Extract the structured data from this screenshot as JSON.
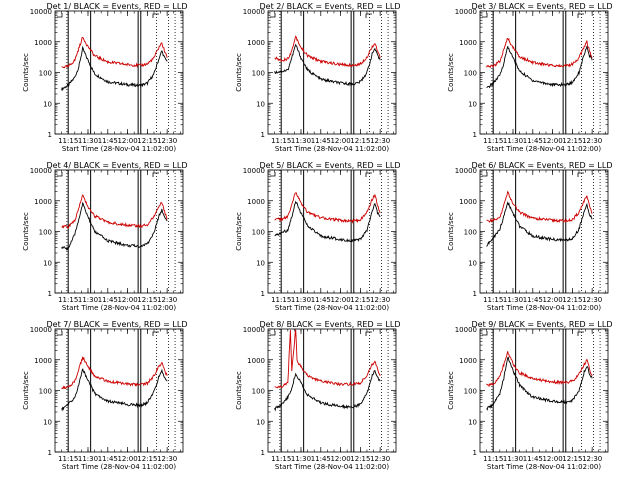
{
  "chart_data": [
    {
      "type": "line",
      "title": "Det 1/ BLACK = Events, RED = LLD",
      "xlabel": "Start Time (28-Nov-04 11:02:00)",
      "ylabel": "Counts/sec",
      "yscale": "log",
      "ylim": [
        1,
        10000
      ],
      "x_ticks": [
        "11:15",
        "11:30",
        "11:45",
        "12:00",
        "12:15",
        "12:30"
      ],
      "y_ticks": [
        "1",
        "10",
        "100",
        "1000",
        "10000"
      ],
      "vlines_solid": [
        "11:15",
        "11:32",
        "12:08",
        "12:10"
      ],
      "vlines_dotted": [
        "11:14",
        "12:22",
        "12:31",
        "12:36"
      ],
      "series": [
        {
          "name": "Events",
          "color": "#000000",
          "x": [
            "11:10",
            "11:15",
            "11:20",
            "11:23",
            "11:26",
            "11:30",
            "11:35",
            "11:45",
            "12:00",
            "12:10",
            "12:15",
            "12:20",
            "12:24",
            "12:26",
            "12:28",
            "12:30"
          ],
          "y": [
            29,
            38,
            70,
            150,
            600,
            250,
            90,
            50,
            40,
            38,
            45,
            90,
            300,
            500,
            300,
            230
          ]
        },
        {
          "name": "LLD",
          "color": "#cc0000",
          "x": [
            "11:10",
            "11:15",
            "11:20",
            "11:23",
            "11:26",
            "11:30",
            "11:35",
            "11:45",
            "12:00",
            "12:10",
            "12:15",
            "12:20",
            "12:24",
            "12:26",
            "12:28",
            "12:30"
          ],
          "y": [
            150,
            155,
            250,
            600,
            1400,
            700,
            350,
            220,
            180,
            170,
            190,
            300,
            700,
            900,
            500,
            300
          ]
        }
      ]
    },
    {
      "type": "line",
      "title": "Det 2/ BLACK = Events, RED = LLD",
      "xlabel": "Start Time (28-Nov-04 11:02:00)",
      "ylabel": "Counts/sec",
      "yscale": "log",
      "ylim": [
        1,
        10000
      ],
      "x_ticks": [
        "11:15",
        "11:30",
        "11:45",
        "12:00",
        "12:15",
        "12:30"
      ],
      "y_ticks": [
        "1",
        "10",
        "100",
        "1000",
        "10000"
      ],
      "vlines_solid": [
        "11:15",
        "11:32",
        "12:08",
        "12:10"
      ],
      "vlines_dotted": [
        "11:14",
        "12:22",
        "12:31",
        "12:36"
      ],
      "series": [
        {
          "name": "Events",
          "color": "#000000",
          "x": [
            "11:10",
            "11:15",
            "11:20",
            "11:23",
            "11:26",
            "11:30",
            "11:35",
            "11:45",
            "12:00",
            "12:10",
            "12:15",
            "12:20",
            "12:24",
            "12:26",
            "12:28",
            "12:30"
          ],
          "y": [
            100,
            110,
            120,
            300,
            800,
            300,
            120,
            60,
            45,
            42,
            50,
            100,
            400,
            600,
            350,
            250
          ]
        },
        {
          "name": "LLD",
          "color": "#cc0000",
          "x": [
            "11:10",
            "11:15",
            "11:20",
            "11:23",
            "11:26",
            "11:30",
            "11:35",
            "11:45",
            "12:00",
            "12:10",
            "12:15",
            "12:20",
            "12:24",
            "12:26",
            "12:28",
            "12:30"
          ],
          "y": [
            300,
            250,
            280,
            500,
            1500,
            650,
            350,
            230,
            180,
            170,
            190,
            320,
            700,
            900,
            500,
            300
          ]
        }
      ]
    },
    {
      "type": "line",
      "title": "Det 3/ BLACK = Events, RED = LLD",
      "xlabel": "Start Time (28-Nov-04 11:02:00)",
      "ylabel": "Counts/sec",
      "yscale": "log",
      "ylim": [
        1,
        10000
      ],
      "x_ticks": [
        "11:15",
        "11:30",
        "11:45",
        "12:00",
        "12:15",
        "12:30"
      ],
      "y_ticks": [
        "1",
        "10",
        "100",
        "1000",
        "10000"
      ],
      "vlines_solid": [
        "11:15",
        "11:32",
        "12:08",
        "12:10"
      ],
      "vlines_dotted": [
        "11:14",
        "12:22",
        "12:31",
        "12:36"
      ],
      "series": [
        {
          "name": "Events",
          "color": "#000000",
          "x": [
            "11:10",
            "11:15",
            "11:20",
            "11:23",
            "11:26",
            "11:30",
            "11:35",
            "11:45",
            "12:00",
            "12:10",
            "12:15",
            "12:20",
            "12:24",
            "12:26",
            "12:28",
            "12:30"
          ],
          "y": [
            30,
            45,
            80,
            200,
            700,
            300,
            110,
            55,
            40,
            40,
            48,
            100,
            400,
            650,
            350,
            250
          ]
        },
        {
          "name": "LLD",
          "color": "#cc0000",
          "x": [
            "11:10",
            "11:15",
            "11:20",
            "11:23",
            "11:26",
            "11:30",
            "11:35",
            "11:45",
            "12:00",
            "12:10",
            "12:15",
            "12:20",
            "12:24",
            "12:26",
            "12:28",
            "12:30"
          ],
          "y": [
            150,
            160,
            230,
            550,
            1300,
            650,
            330,
            210,
            170,
            165,
            185,
            300,
            700,
            1000,
            500,
            300
          ]
        }
      ]
    },
    {
      "type": "line",
      "title": "Det 4/ BLACK = Events, RED = LLD",
      "xlabel": "Start Time (28-Nov-04 11:02:00)",
      "ylabel": "Counts/sec",
      "yscale": "log",
      "ylim": [
        1,
        10000
      ],
      "x_ticks": [
        "11:15",
        "11:30",
        "11:45",
        "12:00",
        "12:15",
        "12:30"
      ],
      "y_ticks": [
        "1",
        "10",
        "100",
        "1000",
        "10000"
      ],
      "vlines_solid": [
        "11:15",
        "11:32",
        "12:08",
        "12:10"
      ],
      "vlines_dotted": [
        "11:14",
        "12:22",
        "12:31",
        "12:36"
      ],
      "series": [
        {
          "name": "Events",
          "color": "#000000",
          "x": [
            "11:10",
            "11:15",
            "11:20",
            "11:23",
            "11:26",
            "11:30",
            "11:35",
            "11:45",
            "12:00",
            "12:10",
            "12:15",
            "12:20",
            "12:24",
            "12:26",
            "12:28",
            "12:30"
          ],
          "y": [
            30,
            28,
            80,
            250,
            800,
            300,
            100,
            50,
            35,
            33,
            40,
            90,
            350,
            500,
            300,
            220
          ]
        },
        {
          "name": "LLD",
          "color": "#cc0000",
          "x": [
            "11:10",
            "11:15",
            "11:20",
            "11:23",
            "11:26",
            "11:30",
            "11:35",
            "11:45",
            "12:00",
            "12:10",
            "12:15",
            "12:20",
            "12:24",
            "12:26",
            "12:28",
            "12:30"
          ],
          "y": [
            150,
            140,
            220,
            600,
            1500,
            650,
            320,
            200,
            160,
            150,
            170,
            300,
            700,
            900,
            450,
            250
          ]
        }
      ]
    },
    {
      "type": "line",
      "title": "Det 5/ BLACK = Events, RED = LLD",
      "xlabel": "Start Time (28-Nov-04 11:02:00)",
      "ylabel": "Counts/sec",
      "yscale": "log",
      "ylim": [
        1,
        10000
      ],
      "x_ticks": [
        "11:15",
        "11:30",
        "11:45",
        "12:00",
        "12:15",
        "12:30"
      ],
      "y_ticks": [
        "1",
        "10",
        "100",
        "1000",
        "10000"
      ],
      "vlines_solid": [
        "11:15",
        "11:32",
        "12:08",
        "12:10"
      ],
      "vlines_dotted": [
        "11:14",
        "12:22",
        "12:31",
        "12:36"
      ],
      "series": [
        {
          "name": "Events",
          "color": "#000000",
          "x": [
            "11:10",
            "11:15",
            "11:20",
            "11:23",
            "11:26",
            "11:30",
            "11:35",
            "11:45",
            "12:00",
            "12:10",
            "12:15",
            "12:20",
            "12:24",
            "12:26",
            "12:28",
            "12:30"
          ],
          "y": [
            70,
            90,
            110,
            300,
            1000,
            400,
            150,
            70,
            55,
            50,
            55,
            110,
            450,
            800,
            400,
            300
          ]
        },
        {
          "name": "LLD",
          "color": "#cc0000",
          "x": [
            "11:10",
            "11:15",
            "11:20",
            "11:23",
            "11:26",
            "11:30",
            "11:35",
            "11:45",
            "12:00",
            "12:10",
            "12:15",
            "12:20",
            "12:24",
            "12:26",
            "12:28",
            "12:30"
          ],
          "y": [
            250,
            250,
            300,
            700,
            2000,
            800,
            420,
            280,
            230,
            220,
            240,
            420,
            1100,
            1600,
            700,
            400
          ]
        }
      ]
    },
    {
      "type": "line",
      "title": "Det 6/ BLACK = Events, RED = LLD",
      "xlabel": "Start Time (28-Nov-04 11:02:00)",
      "ylabel": "Counts/sec",
      "yscale": "log",
      "ylim": [
        1,
        10000
      ],
      "x_ticks": [
        "11:15",
        "11:30",
        "11:45",
        "12:00",
        "12:15",
        "12:30"
      ],
      "y_ticks": [
        "1",
        "10",
        "100",
        "1000",
        "10000"
      ],
      "vlines_solid": [
        "11:15",
        "11:32",
        "12:08",
        "12:10"
      ],
      "vlines_dotted": [
        "11:14",
        "12:22",
        "12:31",
        "12:36"
      ],
      "series": [
        {
          "name": "Events",
          "color": "#000000",
          "x": [
            "11:10",
            "11:15",
            "11:20",
            "11:23",
            "11:26",
            "11:30",
            "11:35",
            "11:45",
            "12:00",
            "12:10",
            "12:15",
            "12:20",
            "12:24",
            "12:26",
            "12:28",
            "12:30"
          ],
          "y": [
            35,
            60,
            120,
            300,
            900,
            400,
            150,
            70,
            55,
            52,
            58,
            120,
            450,
            700,
            350,
            250
          ]
        },
        {
          "name": "LLD",
          "color": "#cc0000",
          "x": [
            "11:10",
            "11:15",
            "11:20",
            "11:23",
            "11:26",
            "11:30",
            "11:35",
            "11:45",
            "12:00",
            "12:10",
            "12:15",
            "12:20",
            "12:24",
            "12:26",
            "12:28",
            "12:30"
          ],
          "y": [
            220,
            230,
            280,
            700,
            1900,
            800,
            420,
            270,
            230,
            220,
            240,
            420,
            1000,
            1400,
            650,
            380
          ]
        }
      ]
    },
    {
      "type": "line",
      "title": "Det 7/ BLACK = Events, RED = LLD",
      "xlabel": "Start Time (28-Nov-04 11:02:00)",
      "ylabel": "Counts/sec",
      "yscale": "log",
      "ylim": [
        1,
        10000
      ],
      "x_ticks": [
        "11:15",
        "11:30",
        "11:45",
        "12:00",
        "12:15",
        "12:30"
      ],
      "y_ticks": [
        "1",
        "10",
        "100",
        "1000",
        "10000"
      ],
      "vlines_solid": [
        "11:15",
        "11:32",
        "12:08",
        "12:10"
      ],
      "vlines_dotted": [
        "11:14",
        "12:22",
        "12:31",
        "12:36"
      ],
      "series": [
        {
          "name": "Events",
          "color": "#000000",
          "x": [
            "11:10",
            "11:15",
            "11:20",
            "11:23",
            "11:26",
            "11:30",
            "11:35",
            "11:45",
            "12:00",
            "12:10",
            "12:15",
            "12:20",
            "12:24",
            "12:26",
            "12:28",
            "12:30"
          ],
          "y": [
            25,
            35,
            60,
            150,
            500,
            220,
            80,
            45,
            35,
            33,
            40,
            90,
            300,
            450,
            280,
            200
          ]
        },
        {
          "name": "LLD",
          "color": "#cc0000",
          "x": [
            "11:10",
            "11:15",
            "11:20",
            "11:23",
            "11:26",
            "11:30",
            "11:35",
            "11:45",
            "12:00",
            "12:10",
            "12:15",
            "12:20",
            "12:24",
            "12:26",
            "12:28",
            "12:30"
          ],
          "y": [
            120,
            130,
            200,
            500,
            1200,
            600,
            300,
            200,
            160,
            155,
            175,
            300,
            650,
            800,
            450,
            300
          ]
        }
      ]
    },
    {
      "type": "line",
      "title": "Det 8/ BLACK = Events, RED = LLD",
      "xlabel": "Start Time (28-Nov-04 11:02:00)",
      "ylabel": "Counts/sec",
      "yscale": "log",
      "ylim": [
        1,
        10000
      ],
      "x_ticks": [
        "11:15",
        "11:30",
        "11:45",
        "12:00",
        "12:15",
        "12:30"
      ],
      "y_ticks": [
        "1",
        "10",
        "100",
        "1000",
        "10000"
      ],
      "vlines_solid": [
        "11:15",
        "11:32",
        "12:08",
        "12:10"
      ],
      "vlines_dotted": [
        "11:14",
        "12:22",
        "12:31",
        "12:36"
      ],
      "series": [
        {
          "name": "Events",
          "color": "#000000",
          "x": [
            "11:10",
            "11:15",
            "11:20",
            "11:23",
            "11:26",
            "11:30",
            "11:35",
            "11:45",
            "12:00",
            "12:10",
            "12:15",
            "12:20",
            "12:24",
            "12:26",
            "12:28",
            "12:30"
          ],
          "y": [
            25,
            35,
            60,
            120,
            350,
            180,
            70,
            40,
            30,
            30,
            35,
            80,
            300,
            450,
            280,
            200
          ]
        },
        {
          "name": "LLD",
          "color": "#cc0000",
          "x": [
            "11:10",
            "11:15",
            "11:20",
            "11:22",
            "11:23",
            "11:26",
            "11:27",
            "11:30",
            "11:35",
            "11:45",
            "12:00",
            "12:10",
            "12:15",
            "12:20",
            "12:24",
            "12:26",
            "12:28",
            "12:30"
          ],
          "y": [
            120,
            130,
            180,
            10000,
            400,
            10000,
            900,
            600,
            300,
            200,
            160,
            160,
            180,
            300,
            700,
            900,
            500,
            300
          ]
        }
      ]
    },
    {
      "type": "line",
      "title": "Det 9/ BLACK = Events, RED = LLD",
      "xlabel": "Start Time (28-Nov-04 11:02:00)",
      "ylabel": "Counts/sec",
      "yscale": "log",
      "ylim": [
        1,
        10000
      ],
      "x_ticks": [
        "11:15",
        "11:30",
        "11:45",
        "12:00",
        "12:15",
        "12:30"
      ],
      "y_ticks": [
        "1",
        "10",
        "100",
        "1000",
        "10000"
      ],
      "vlines_solid": [
        "11:15",
        "11:32",
        "12:08",
        "12:10"
      ],
      "vlines_dotted": [
        "11:14",
        "12:22",
        "12:31",
        "12:36"
      ],
      "series": [
        {
          "name": "Events",
          "color": "#000000",
          "x": [
            "11:10",
            "11:15",
            "11:20",
            "11:23",
            "11:26",
            "11:30",
            "11:35",
            "11:45",
            "12:00",
            "12:10",
            "12:15",
            "12:20",
            "12:24",
            "12:26",
            "12:28",
            "12:30"
          ],
          "y": [
            25,
            35,
            80,
            250,
            1200,
            450,
            150,
            60,
            45,
            42,
            48,
            100,
            400,
            650,
            350,
            250
          ]
        },
        {
          "name": "LLD",
          "color": "#cc0000",
          "x": [
            "11:10",
            "11:15",
            "11:20",
            "11:23",
            "11:26",
            "11:30",
            "11:35",
            "11:45",
            "12:00",
            "12:10",
            "12:15",
            "12:20",
            "12:24",
            "12:26",
            "12:28",
            "12:30"
          ],
          "y": [
            150,
            160,
            300,
            700,
            1800,
            750,
            380,
            240,
            190,
            180,
            200,
            330,
            700,
            1000,
            500,
            300
          ]
        }
      ]
    }
  ]
}
